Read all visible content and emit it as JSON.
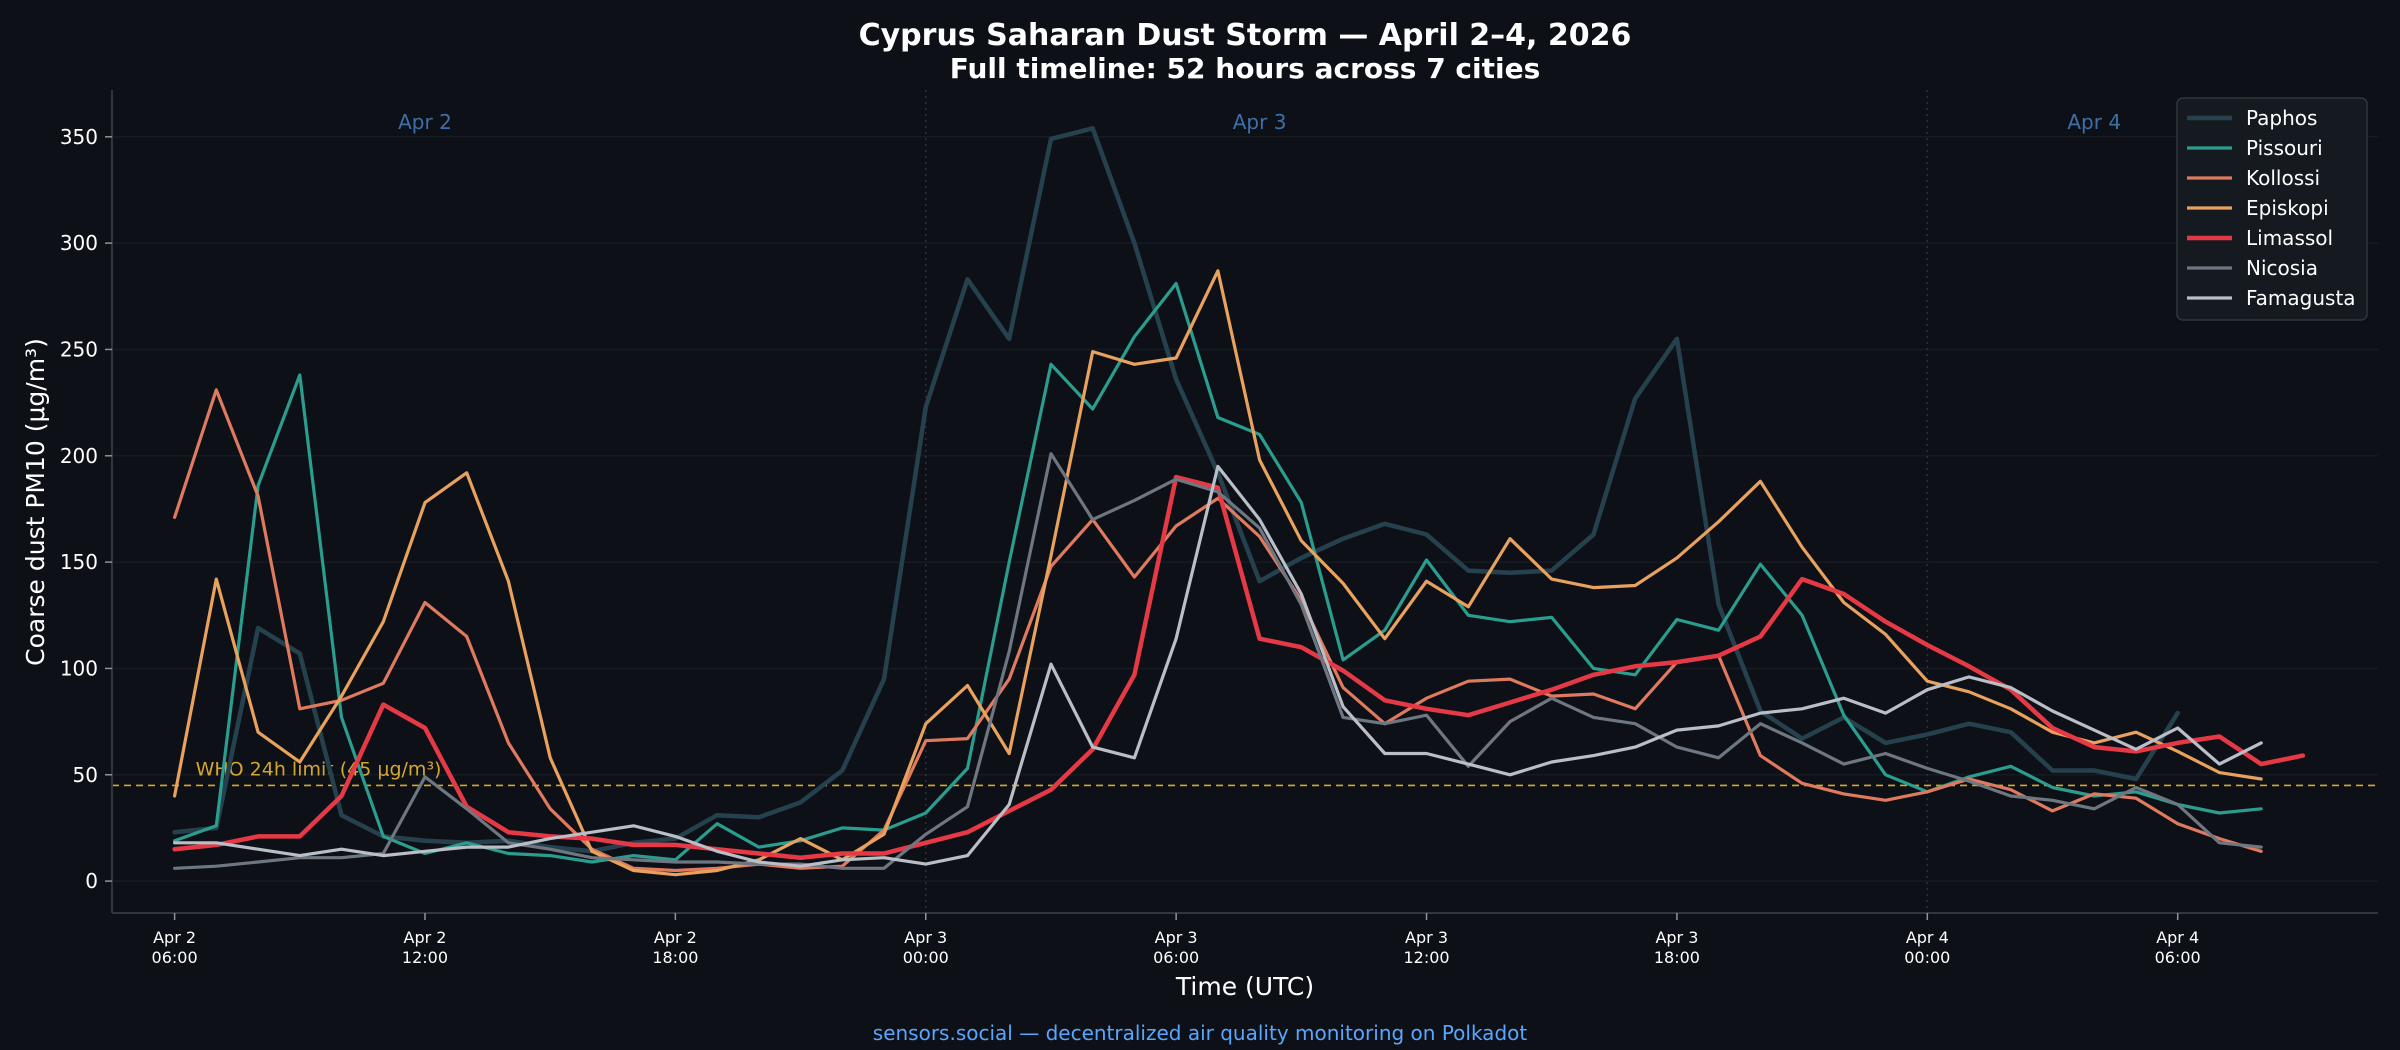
{
  "chart_data": {
    "type": "line",
    "title": "Cyprus Saharan Dust Storm — April 2–4, 2026",
    "subtitle": "Full timeline: 52 hours across 7 cities",
    "xlabel": "Time (UTC)",
    "ylabel": "Coarse dust PM10 (μg/m³)",
    "xlim_hours": [
      -1.5,
      52.8
    ],
    "ylim": [
      -15,
      372
    ],
    "yticks": [
      0,
      50,
      100,
      150,
      200,
      250,
      300,
      350
    ],
    "xticks": [
      {
        "hour": 0,
        "line1": "Apr 2",
        "line2": "06:00"
      },
      {
        "hour": 6,
        "line1": "Apr 2",
        "line2": "12:00"
      },
      {
        "hour": 12,
        "line1": "Apr 2",
        "line2": "18:00"
      },
      {
        "hour": 18,
        "line1": "Apr 3",
        "line2": "00:00"
      },
      {
        "hour": 24,
        "line1": "Apr 3",
        "line2": "06:00"
      },
      {
        "hour": 30,
        "line1": "Apr 3",
        "line2": "12:00"
      },
      {
        "hour": 36,
        "line1": "Apr 3",
        "line2": "18:00"
      },
      {
        "hour": 42,
        "line1": "Apr 4",
        "line2": "00:00"
      },
      {
        "hour": 48,
        "line1": "Apr 4",
        "line2": "06:00"
      }
    ],
    "day_dividers": [
      18,
      42
    ],
    "day_labels": [
      {
        "hour": 6,
        "label": "Apr 2"
      },
      {
        "hour": 26,
        "label": "Apr 3"
      },
      {
        "hour": 46,
        "label": "Apr 4"
      }
    ],
    "reference_line": {
      "value": 45,
      "label": "WHO 24h limit (45 μg/m³)",
      "color": "#d4a72c"
    },
    "legend_position": "top-right",
    "grid": true,
    "series": [
      {
        "name": "Paphos",
        "color": "#26414e",
        "width": 4.5,
        "x": [
          0,
          1,
          2,
          3,
          4,
          5,
          6,
          7,
          8,
          9,
          10,
          11,
          12,
          13,
          14,
          15,
          16,
          17,
          18,
          19,
          20,
          21,
          22,
          23,
          24,
          25,
          26,
          27,
          28,
          29,
          30,
          31,
          32,
          33,
          34,
          35,
          36,
          37,
          38,
          39,
          40,
          41,
          42,
          43,
          44,
          45,
          46,
          47,
          48
        ],
        "y": [
          23,
          25,
          119,
          107,
          31,
          21,
          19,
          18,
          19,
          16,
          14,
          18,
          20,
          31,
          30,
          37,
          52,
          95,
          223,
          283,
          255,
          349,
          354,
          300,
          236,
          192,
          141,
          152,
          161,
          168,
          163,
          146,
          145,
          146,
          163,
          227,
          255,
          130,
          80,
          67,
          77,
          65,
          69,
          74,
          70,
          52,
          52,
          48,
          79
        ]
      },
      {
        "name": "Pissouri",
        "color": "#2a9d8f",
        "width": 3.2,
        "x": [
          0,
          1,
          2,
          3,
          4,
          5,
          6,
          7,
          8,
          9,
          10,
          11,
          12,
          13,
          14,
          15,
          16,
          17,
          18,
          19,
          20,
          21,
          22,
          23,
          24,
          25,
          26,
          27,
          28,
          29,
          30,
          31,
          32,
          33,
          34,
          35,
          36,
          37,
          38,
          39,
          40,
          41,
          42,
          43,
          44,
          45,
          46,
          47,
          48,
          49,
          50
        ],
        "y": [
          19,
          26,
          186,
          238,
          77,
          21,
          13,
          18,
          13,
          12,
          9,
          12,
          10,
          27,
          16,
          19,
          25,
          24,
          32,
          53,
          150,
          243,
          222,
          256,
          281,
          218,
          210,
          178,
          104,
          118,
          151,
          125,
          122,
          124,
          100,
          97,
          123,
          118,
          149,
          125,
          78,
          50,
          42,
          49,
          54,
          44,
          40,
          42,
          36,
          32,
          34
        ]
      },
      {
        "name": "Kollossi",
        "color": "#e07a5f",
        "width": 3.2,
        "x": [
          0,
          1,
          2,
          3,
          4,
          5,
          6,
          7,
          8,
          9,
          10,
          11,
          12,
          13,
          14,
          15,
          16,
          17,
          18,
          19,
          20,
          21,
          22,
          23,
          24,
          25,
          26,
          27,
          28,
          29,
          30,
          31,
          32,
          33,
          34,
          35,
          36,
          37,
          38,
          39,
          40,
          41,
          42,
          43,
          44,
          45,
          46,
          47,
          48,
          49,
          50
        ],
        "y": [
          171,
          231,
          181,
          81,
          85,
          93,
          131,
          115,
          65,
          34,
          15,
          6,
          5,
          6,
          8,
          6,
          7,
          24,
          66,
          67,
          95,
          148,
          170,
          143,
          167,
          180,
          162,
          132,
          91,
          74,
          86,
          94,
          95,
          87,
          88,
          81,
          103,
          106,
          59,
          46,
          41,
          38,
          42,
          48,
          43,
          33,
          41,
          39,
          27,
          20,
          14
        ]
      },
      {
        "name": "Episkopi",
        "color": "#e9a15e",
        "width": 3.2,
        "x": [
          0,
          1,
          2,
          3,
          4,
          5,
          6,
          7,
          8,
          9,
          10,
          11,
          12,
          13,
          14,
          15,
          16,
          17,
          18,
          19,
          20,
          21,
          22,
          23,
          24,
          25,
          26,
          27,
          28,
          29,
          30,
          31,
          32,
          33,
          34,
          35,
          36,
          37,
          38,
          39,
          40,
          41,
          42,
          43,
          44,
          45,
          46,
          47,
          48,
          49,
          50
        ],
        "y": [
          40,
          142,
          70,
          56,
          87,
          122,
          178,
          192,
          141,
          58,
          14,
          5,
          3,
          5,
          10,
          20,
          10,
          22,
          74,
          92,
          60,
          153,
          249,
          243,
          246,
          287,
          198,
          160,
          140,
          114,
          141,
          129,
          161,
          142,
          138,
          139,
          152,
          169,
          188,
          157,
          131,
          116,
          94,
          89,
          81,
          70,
          65,
          70,
          61,
          51,
          48
        ]
      },
      {
        "name": "Limassol",
        "color": "#e63946",
        "width": 4.5,
        "x": [
          0,
          1,
          2,
          3,
          4,
          5,
          6,
          7,
          8,
          9,
          10,
          11,
          12,
          13,
          14,
          15,
          16,
          17,
          18,
          19,
          20,
          21,
          22,
          23,
          24,
          25,
          26,
          27,
          28,
          29,
          30,
          31,
          32,
          33,
          34,
          35,
          36,
          37,
          38,
          39,
          40,
          41,
          42,
          43,
          44,
          45,
          46,
          47,
          48,
          49,
          50,
          51
        ],
        "y": [
          15,
          17,
          21,
          21,
          40,
          83,
          72,
          35,
          23,
          21,
          20,
          17,
          17,
          15,
          13,
          11,
          13,
          13,
          18,
          23,
          33,
          43,
          62,
          97,
          190,
          185,
          114,
          110,
          99,
          85,
          81,
          78,
          84,
          90,
          97,
          101,
          103,
          106,
          115,
          142,
          135,
          122,
          111,
          101,
          90,
          72,
          63,
          61,
          65,
          68,
          55,
          59
        ]
      },
      {
        "name": "Nicosia",
        "color": "#6e7681",
        "width": 3.2,
        "x": [
          0,
          1,
          2,
          3,
          4,
          5,
          6,
          7,
          8,
          9,
          10,
          11,
          12,
          13,
          14,
          15,
          16,
          17,
          18,
          19,
          20,
          21,
          22,
          23,
          24,
          25,
          26,
          27,
          28,
          29,
          30,
          31,
          32,
          33,
          34,
          35,
          36,
          37,
          38,
          39,
          40,
          41,
          42,
          43,
          44,
          45,
          46,
          47,
          48,
          49,
          50
        ],
        "y": [
          6,
          7,
          9,
          11,
          11,
          13,
          49,
          34,
          18,
          15,
          11,
          10,
          9,
          9,
          8,
          8,
          6,
          6,
          22,
          35,
          108,
          201,
          170,
          179,
          189,
          183,
          166,
          130,
          77,
          74,
          78,
          54,
          75,
          86,
          77,
          74,
          63,
          58,
          74,
          65,
          55,
          60,
          53,
          47,
          40,
          38,
          34,
          44,
          36,
          18,
          16
        ]
      },
      {
        "name": "Famagusta",
        "color": "#b9bec7",
        "width": 3.2,
        "x": [
          0,
          1,
          2,
          3,
          4,
          5,
          6,
          7,
          8,
          9,
          10,
          11,
          12,
          13,
          14,
          15,
          16,
          17,
          18,
          19,
          20,
          21,
          22,
          23,
          24,
          25,
          26,
          27,
          28,
          29,
          30,
          31,
          32,
          33,
          34,
          35,
          36,
          37,
          38,
          39,
          40,
          41,
          42,
          43,
          44,
          45,
          46,
          47,
          48,
          49,
          50
        ],
        "y": [
          18,
          18,
          15,
          12,
          15,
          12,
          14,
          16,
          16,
          20,
          23,
          26,
          21,
          14,
          9,
          7,
          10,
          11,
          8,
          12,
          36,
          102,
          63,
          58,
          114,
          195,
          170,
          135,
          82,
          60,
          60,
          55,
          50,
          56,
          59,
          63,
          71,
          73,
          79,
          81,
          86,
          79,
          90,
          96,
          91,
          80,
          71,
          62,
          72,
          55,
          65
        ]
      }
    ]
  },
  "footer": "sensors.social — decentralized air quality monitoring on Polkadot",
  "colors": {
    "background": "#0d1117",
    "text": "#ffffff",
    "axis": "#30363d",
    "grid": "#161b22",
    "day_label": "#3d6fa8",
    "footer": "#58a6ff",
    "legend_bg": "#161b22",
    "legend_border": "#30363d"
  }
}
